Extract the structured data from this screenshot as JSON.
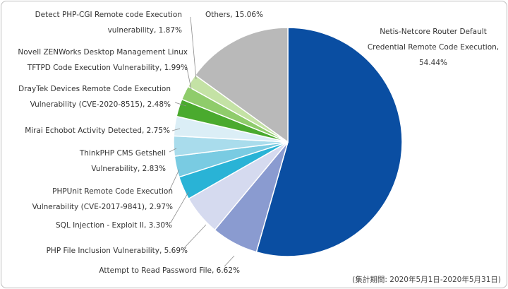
{
  "chart_data": {
    "type": "pie",
    "start_angle_deg": 0,
    "direction": "clockwise",
    "slices": [
      {
        "label_lines": [
          "Netis-Netcore Router Default",
          "Credential Remote Code Execution,",
          "54.44%"
        ],
        "value": 54.44,
        "color": "#0a4ea2"
      },
      {
        "label_lines": [
          "Attempt to Read Password File, 6.62%"
        ],
        "value": 6.62,
        "color": "#8a9bd0"
      },
      {
        "label_lines": [
          "PHP File Inclusion Vulnerability, 5.69%"
        ],
        "value": 5.69,
        "color": "#d5daef"
      },
      {
        "label_lines": [
          "SQL Injection - Exploit II, 3.30%"
        ],
        "value": 3.3,
        "color": "#29b3d6"
      },
      {
        "label_lines": [
          "PHPUnit Remote Code Execution",
          "Vulnerability (CVE-2017-9841), 2.97%"
        ],
        "value": 2.97,
        "color": "#79cbe2"
      },
      {
        "label_lines": [
          "ThinkPHP CMS Getshell",
          "Vulnerability, 2.83%"
        ],
        "value": 2.83,
        "color": "#a9dcec"
      },
      {
        "label_lines": [
          "Mirai Echobot Activity Detected, 2.75%"
        ],
        "value": 2.75,
        "color": "#dbeef6"
      },
      {
        "label_lines": [
          "DrayTek Devices Remote Code Execution",
          "Vulnerability (CVE-2020-8515), 2.48%"
        ],
        "value": 2.48,
        "color": "#4aaa2e"
      },
      {
        "label_lines": [
          "Novell ZENWorks Desktop Management Linux",
          "TFTPD Code Execution Vulnerability, 1.99%"
        ],
        "value": 1.99,
        "color": "#8fcc6b"
      },
      {
        "label_lines": [
          "Detect PHP-CGI Remote code Execution",
          "vulnerability, 1.87%"
        ],
        "value": 1.87,
        "color": "#c4e2a5"
      },
      {
        "label_lines": [
          "Others, 15.06%"
        ],
        "value": 15.06,
        "color": "#b9b9b9"
      }
    ]
  },
  "footnote": "(集計期間: 2020年5月1日-2020年5月31日)"
}
